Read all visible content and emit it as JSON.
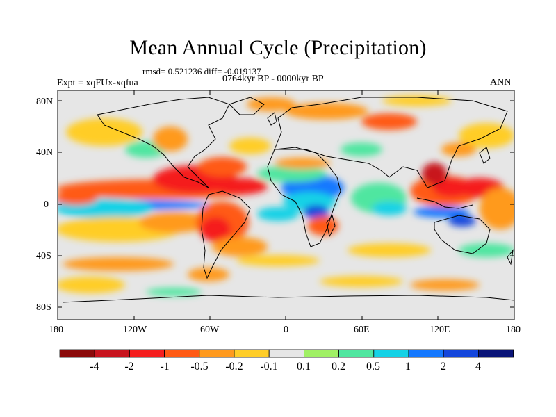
{
  "title": "Mean Annual Cycle (Precipitation)",
  "stats_line": "rmsd= 0.521236 diff= -0.019137",
  "period": "0764kyr BP - 0000kyr BP",
  "experiment": "Expt = xqFUx-xqfua",
  "season": "ANN",
  "lat_ticks": [
    "80N",
    "40N",
    "0",
    "40S",
    "80S"
  ],
  "lon_ticks": [
    "180",
    "120W",
    "60W",
    "0",
    "60E",
    "120E",
    "180"
  ],
  "colorbar": {
    "labels": [
      "-4",
      "-2",
      "-1",
      "-0.5",
      "-0.2",
      "-0.1",
      "0.1",
      "0.2",
      "0.5",
      "1",
      "2",
      "4"
    ],
    "colors": [
      "#8b0a0a",
      "#c8141e",
      "#f51e1e",
      "#ff5a14",
      "#ff9a1e",
      "#ffcd28",
      "#e6e6e6",
      "#a0f064",
      "#50e6a0",
      "#14d2e6",
      "#1478ff",
      "#1446dc",
      "#0a1478"
    ]
  }
}
